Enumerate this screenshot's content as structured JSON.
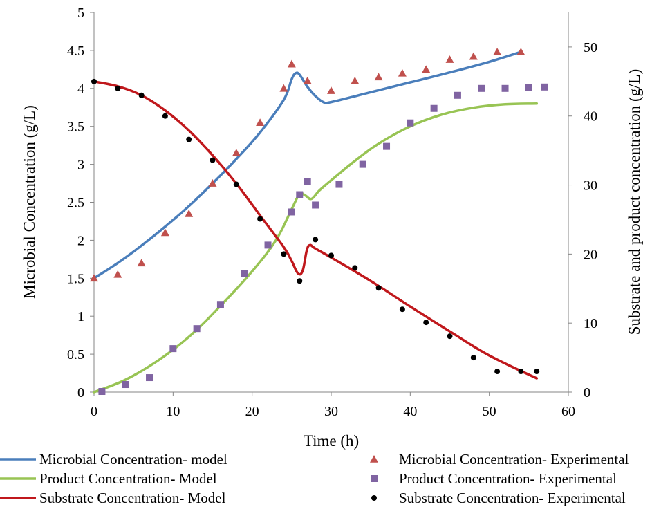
{
  "chart_data": {
    "type": "line",
    "xlabel": "Time (h)",
    "ylabel_left": "Microbial Concentration (g/L)",
    "ylabel_right": "Substrate and product concentration (g/L)",
    "xlim": [
      0,
      60
    ],
    "ylim_left": [
      0,
      5
    ],
    "ylim_right": [
      0,
      55
    ],
    "x_ticks": [
      "0",
      "10",
      "20",
      "30",
      "40",
      "50",
      "60"
    ],
    "y_left_ticks": [
      "0",
      "0.5",
      "1",
      "1.5",
      "2",
      "2.5",
      "3",
      "3.5",
      "4",
      "4.5",
      "5"
    ],
    "y_right_ticks": [
      "0",
      "10",
      "20",
      "30",
      "40",
      "50"
    ],
    "grid": false,
    "legend_position": "bottom",
    "series": [
      {
        "name": "Microbial Concentration- model",
        "kind": "line",
        "axis": "left",
        "color": "#4a7ebb",
        "x": [
          0,
          3,
          6,
          9,
          12,
          15,
          18,
          21,
          24,
          25,
          25.5,
          26,
          27,
          28,
          29,
          30,
          35,
          40,
          45,
          50,
          54
        ],
        "y": [
          1.5,
          1.7,
          1.93,
          2.18,
          2.45,
          2.75,
          3.07,
          3.42,
          3.85,
          4.12,
          4.2,
          4.18,
          4.02,
          3.9,
          3.82,
          3.82,
          3.95,
          4.08,
          4.21,
          4.35,
          4.48
        ]
      },
      {
        "name": "Product Concentration- Model",
        "kind": "line",
        "axis": "right",
        "color": "#98c454",
        "x": [
          0,
          4,
          8,
          12,
          16,
          20,
          23,
          25,
          26,
          26.7,
          27.5,
          28.5,
          30,
          33,
          36,
          40,
          44,
          48,
          52,
          56
        ],
        "y": [
          0,
          1.8,
          4.5,
          8,
          12.5,
          17.5,
          22,
          26.5,
          28.7,
          28.5,
          28,
          29.2,
          30.7,
          33.5,
          36,
          38.5,
          40.2,
          41.2,
          41.7,
          41.8
        ]
      },
      {
        "name": "Substrate Concentration- Model",
        "kind": "line",
        "axis": "right",
        "color": "#c0181c",
        "x": [
          0,
          3,
          6,
          9,
          12,
          15,
          18,
          21,
          24,
          25,
          25.8,
          26.4,
          26.9,
          27.3,
          28,
          30,
          35,
          40,
          45,
          50,
          56
        ],
        "y": [
          45,
          44.3,
          43,
          40.8,
          37.9,
          34.3,
          30.2,
          25.6,
          21,
          19,
          17.2,
          17.6,
          20.5,
          21.3,
          20.8,
          19.5,
          16.1,
          12.4,
          8.8,
          5.3,
          2
        ]
      },
      {
        "name": "Microbial Concentration- Experimental",
        "kind": "scatter",
        "marker": "triangle",
        "axis": "left",
        "color": "#c0504d",
        "x": [
          0,
          3,
          6,
          9,
          12,
          15,
          18,
          21,
          24,
          25,
          27,
          30,
          33,
          36,
          39,
          42,
          45,
          48,
          51,
          54
        ],
        "y": [
          1.5,
          1.55,
          1.7,
          2.1,
          2.35,
          2.75,
          3.15,
          3.55,
          4.0,
          4.32,
          4.1,
          3.97,
          4.1,
          4.15,
          4.2,
          4.25,
          4.38,
          4.42,
          4.48,
          4.48
        ]
      },
      {
        "name": "Product Concentration- Experimental",
        "kind": "scatter",
        "marker": "square",
        "axis": "right",
        "color": "#8064a2",
        "x": [
          1,
          4,
          7,
          10,
          13,
          16,
          19,
          22,
          25,
          26,
          27,
          28,
          31,
          34,
          37,
          40,
          43,
          46,
          49,
          52,
          55,
          57
        ],
        "y": [
          0.1,
          1.1,
          2.1,
          6.3,
          9.2,
          12.7,
          17.2,
          21.3,
          26.1,
          28.6,
          30.5,
          27.1,
          30.1,
          33,
          35.6,
          39,
          41.1,
          43,
          44,
          44,
          44.1,
          44.2
        ]
      },
      {
        "name": "Substrate Concentration- Experimental",
        "kind": "scatter",
        "marker": "circle",
        "axis": "right",
        "color": "#000000",
        "x": [
          0,
          3,
          6,
          9,
          12,
          15,
          18,
          21,
          24,
          26,
          28,
          30,
          33,
          36,
          39,
          42,
          45,
          48,
          51,
          54,
          56
        ],
        "y": [
          45,
          44,
          43,
          40,
          36.6,
          33.6,
          30.1,
          25.1,
          20,
          16.1,
          22.1,
          19.8,
          18,
          15.1,
          12,
          10.1,
          8.1,
          5,
          3,
          3,
          3
        ]
      }
    ]
  }
}
